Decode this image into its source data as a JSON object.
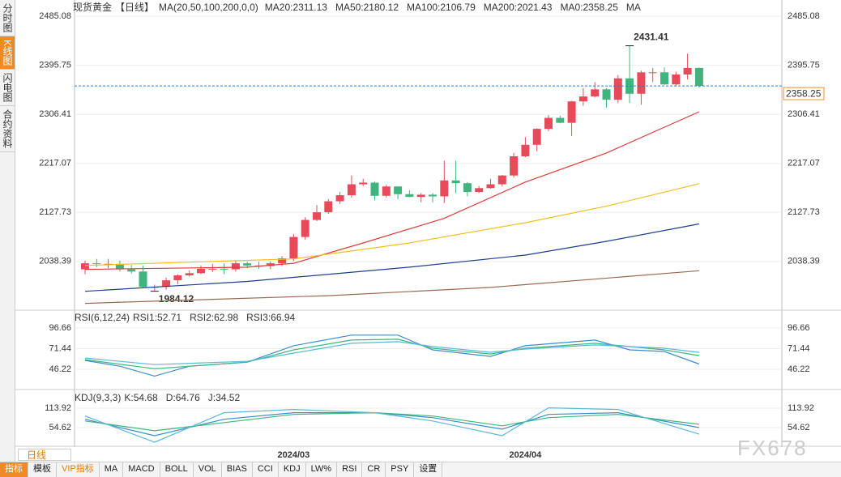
{
  "chart_data": [
    {
      "type": "candlestick",
      "title": "现货黄金",
      "period": "【日线】",
      "indicator": "MA(20,50,100,200,0,0)",
      "categories": [
        null,
        null,
        null,
        null,
        null,
        null,
        null,
        null,
        null,
        null,
        null,
        null,
        null,
        null,
        null,
        null,
        null,
        null,
        "2024/03",
        null,
        null,
        null,
        null,
        null,
        null,
        null,
        null,
        null,
        null,
        null,
        null,
        null,
        null,
        null,
        null,
        null,
        null,
        null,
        "2024/04",
        null,
        null,
        null,
        null,
        null,
        null,
        null,
        null,
        null,
        null,
        null,
        null,
        null,
        null,
        null
      ],
      "open": [
        2024,
        2035,
        2034,
        2034,
        2024,
        2020,
        1992,
        1992,
        2004,
        2013,
        2017,
        2025,
        2025,
        2024,
        2035,
        2031,
        2030,
        2035,
        2044,
        2083,
        2114,
        2128,
        2148,
        2159,
        2179,
        2182,
        2158,
        2175,
        2161,
        2156,
        2160,
        2157,
        2186,
        2181,
        2165,
        2172,
        2179,
        2195,
        2230,
        2251,
        2280,
        2300,
        2291,
        2330,
        2339,
        2352,
        2333,
        2372,
        2344,
        2383,
        2383,
        2361,
        2379,
        2391
      ],
      "high": [
        2040,
        2043,
        2043,
        2040,
        2032,
        2031,
        1996,
        2009,
        2015,
        2022,
        2031,
        2034,
        2035,
        2041,
        2038,
        2038,
        2038,
        2048,
        2088,
        2119,
        2141,
        2152,
        2165,
        2195,
        2189,
        2184,
        2178,
        2175,
        2168,
        2163,
        2163,
        2222,
        2222,
        2183,
        2176,
        2189,
        2196,
        2236,
        2265,
        2281,
        2305,
        2304,
        2331,
        2354,
        2365,
        2354,
        2378,
        2431.41,
        2386,
        2391,
        2392,
        2384,
        2417,
        2392
      ],
      "low": [
        2015,
        2028,
        2026,
        2020,
        2016,
        1990,
        1984.12,
        1987,
        1997,
        2011,
        2015,
        2019,
        2015,
        2020,
        2026,
        2025,
        2024,
        2030,
        2039,
        2078,
        2112,
        2125,
        2143,
        2155,
        2176,
        2150,
        2155,
        2152,
        2155,
        2146,
        2146,
        2145,
        2163,
        2157,
        2163,
        2171,
        2175,
        2191,
        2228,
        2239,
        2276,
        2290,
        2267,
        2322,
        2337,
        2319,
        2327,
        2327,
        2324,
        2365,
        2360,
        2358,
        2370,
        2355
      ],
      "close": [
        2035,
        2034,
        2034,
        2024,
        2020,
        1992,
        1992,
        2004,
        2013,
        2017,
        2025,
        2025,
        2024,
        2035,
        2031,
        2030,
        2035,
        2044,
        2083,
        2114,
        2128,
        2148,
        2159,
        2179,
        2182,
        2158,
        2175,
        2161,
        2156,
        2160,
        2157,
        2186,
        2181,
        2165,
        2172,
        2179,
        2195,
        2230,
        2251,
        2280,
        2300,
        2291,
        2330,
        2339,
        2352,
        2333,
        2372,
        2344,
        2383,
        2383,
        2361,
        2379,
        2391,
        2358.25
      ],
      "up_color": "#e84a5a",
      "down_color": "#3fb57d",
      "ylim": [
        1954,
        2503
      ],
      "yticks": [
        2485.08,
        2395.75,
        2306.41,
        2217.07,
        2127.73,
        2038.39
      ],
      "last_price": 2358.25,
      "high_mark": 2431.41,
      "low_mark": 1984.12,
      "series": [
        {
          "name": "MA20:2311.13",
          "color": "#e03a3a",
          "x": [
            0,
            14,
            18,
            24,
            31,
            38,
            45,
            53
          ],
          "values": [
            2024,
            2028,
            2035,
            2072,
            2117,
            2183,
            2236,
            2311.13
          ]
        },
        {
          "name": "MA50:2180.12",
          "color": "#f0c020",
          "x": [
            0,
            18,
            28,
            38,
            45,
            53
          ],
          "values": [
            2031,
            2043,
            2072,
            2109,
            2139,
            2180.12
          ]
        },
        {
          "name": "MA100:2106.79",
          "color": "#1e3f8a",
          "x": [
            0,
            14,
            28,
            38,
            45,
            53
          ],
          "values": [
            1984,
            2002,
            2028,
            2050,
            2075,
            2106.79
          ]
        },
        {
          "name": "MA200:2021.43",
          "color": "#9a6a50",
          "x": [
            0,
            21,
            35,
            53
          ],
          "values": [
            1962,
            1976,
            1991,
            2021.43
          ]
        }
      ],
      "extras": [
        {
          "text": "MA0:2358.25",
          "color": "#2a7ad5"
        },
        {
          "text": "MA",
          "color": "#3fb57d"
        }
      ]
    },
    {
      "type": "line",
      "title": "RSI(6,12,24)",
      "ylim": [
        24.5,
        114.5
      ],
      "yticks": [
        96.66,
        71.44,
        46.22
      ],
      "series": [
        {
          "name": "RSI1:52.71",
          "color": "#3c8ccc",
          "x": [
            0,
            3,
            6,
            9,
            14,
            18,
            23,
            27,
            30,
            35,
            38,
            44,
            47,
            50,
            53
          ],
          "values": [
            57,
            50,
            38,
            50,
            55,
            75,
            88,
            88,
            70,
            62,
            75,
            82,
            70,
            68,
            52.71
          ]
        },
        {
          "name": "RSI2:62.98",
          "color": "#3fb57d",
          "x": [
            0,
            6,
            14,
            18,
            23,
            27,
            30,
            35,
            38,
            44,
            50,
            53
          ],
          "values": [
            58,
            47,
            55,
            70,
            82,
            83,
            72,
            65,
            72,
            78,
            70,
            62.98
          ]
        },
        {
          "name": "RSI3:66.94",
          "color": "#5ab8d8",
          "x": [
            0,
            6,
            14,
            18,
            23,
            27,
            30,
            35,
            38,
            44,
            50,
            53
          ],
          "values": [
            60,
            52,
            56,
            66,
            78,
            80,
            74,
            67,
            71,
            76,
            72,
            66.94
          ]
        }
      ]
    },
    {
      "type": "line",
      "title": "KDJ(9,3,3)",
      "ylim": [
        5.2,
        158.4
      ],
      "yticks": [
        113.92,
        54.62
      ],
      "series": [
        {
          "name": "K:54.68",
          "color": "#3c8ccc",
          "x": [
            0,
            6,
            12,
            18,
            25,
            30,
            36,
            40,
            46,
            53
          ],
          "values": [
            80,
            30,
            80,
            100,
            100,
            85,
            50,
            95,
            100,
            54.68
          ]
        },
        {
          "name": "D:64.76",
          "color": "#3fb57d",
          "x": [
            0,
            6,
            12,
            18,
            25,
            30,
            36,
            40,
            46,
            53
          ],
          "values": [
            75,
            45,
            70,
            95,
            100,
            90,
            60,
            85,
            95,
            64.76
          ]
        },
        {
          "name": "J:34.52",
          "color": "#5ab8d8",
          "x": [
            0,
            6,
            12,
            18,
            25,
            30,
            36,
            40,
            46,
            53
          ],
          "values": [
            90,
            10,
            100,
            110,
            100,
            75,
            30,
            115,
            110,
            34.52
          ]
        }
      ]
    }
  ],
  "ui": {
    "tabs": [
      "分时图",
      "K线图",
      "闪电图",
      "合约资料"
    ],
    "active_tab": 1,
    "period": "日线",
    "buttons": [
      "指标",
      "模板",
      "VIP指标",
      "MA",
      "MACD",
      "BOLL",
      "VOL",
      "BIAS",
      "CCI",
      "KDJ",
      "LW%",
      "RSI",
      "CR",
      "PSY",
      "设置"
    ],
    "watermark": "FX678"
  }
}
